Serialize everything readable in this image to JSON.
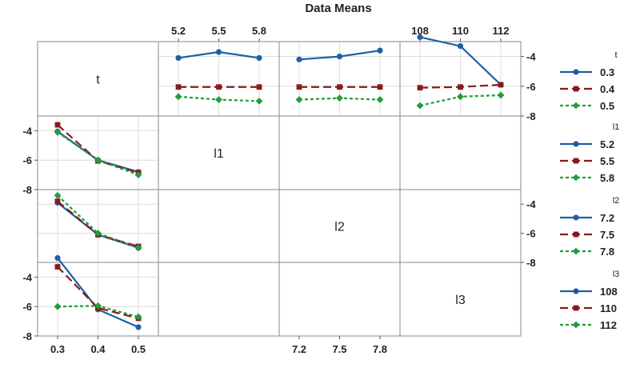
{
  "chart_data": {
    "type": "line",
    "title": "Data Means",
    "factors": [
      {
        "name": "t",
        "levels": [
          0.3,
          0.4,
          0.5
        ],
        "tick_labels": [
          "0.3",
          "0.4",
          "0.5"
        ]
      },
      {
        "name": "l1",
        "levels": [
          5.2,
          5.5,
          5.8
        ],
        "tick_labels": [
          "5.2",
          "5.5",
          "5.8"
        ]
      },
      {
        "name": "l2",
        "levels": [
          7.2,
          7.5,
          7.8
        ],
        "tick_labels": [
          "7.2",
          "7.5",
          "7.8"
        ]
      },
      {
        "name": "l3",
        "levels": [
          108,
          110,
          112
        ],
        "tick_labels": [
          "108",
          "110",
          "112"
        ]
      }
    ],
    "y_range": [
      -8,
      -3
    ],
    "y_ticks": [
      -4,
      -6,
      -8
    ],
    "y_tick_labels": [
      "-4",
      "-6",
      "-8"
    ],
    "grid": true,
    "legend_position": "right",
    "series_colors": [
      "#1f5fa8",
      "#8b1a1a",
      "#1f9e3a"
    ],
    "legends": [
      {
        "title": "t",
        "labels": [
          "0.3",
          "0.4",
          "0.5"
        ]
      },
      {
        "title": "l1",
        "labels": [
          "5.2",
          "5.5",
          "5.8"
        ]
      },
      {
        "title": "l2",
        "labels": [
          "7.2",
          "7.5",
          "7.8"
        ]
      },
      {
        "title": "l3",
        "labels": [
          "108",
          "110",
          "112"
        ]
      }
    ],
    "panels": [
      {
        "row": 0,
        "col": 1,
        "x_factor": "l1",
        "trace_factor": "t",
        "series": [
          {
            "values": [
              -4.1,
              -3.7,
              -4.1
            ]
          },
          {
            "values": [
              -6.05,
              -6.05,
              -6.05
            ]
          },
          {
            "values": [
              -6.7,
              -6.9,
              -7.0
            ]
          }
        ]
      },
      {
        "row": 0,
        "col": 2,
        "x_factor": "l2",
        "trace_factor": "t",
        "series": [
          {
            "values": [
              -4.2,
              -4.0,
              -3.6
            ]
          },
          {
            "values": [
              -6.05,
              -6.05,
              -6.05
            ]
          },
          {
            "values": [
              -6.9,
              -6.8,
              -6.9
            ]
          }
        ]
      },
      {
        "row": 0,
        "col": 3,
        "x_factor": "l3",
        "trace_factor": "t",
        "series": [
          {
            "values": [
              -2.7,
              -3.3,
              -5.9
            ]
          },
          {
            "values": [
              -6.1,
              -6.05,
              -5.9
            ]
          },
          {
            "values": [
              -7.3,
              -6.7,
              -6.6
            ]
          }
        ]
      },
      {
        "row": 1,
        "col": 0,
        "x_factor": "t",
        "trace_factor": "l1",
        "series": [
          {
            "values": [
              -4.05,
              -6.0,
              -6.8
            ]
          },
          {
            "values": [
              -3.6,
              -6.05,
              -6.85
            ]
          },
          {
            "values": [
              -4.1,
              -6.0,
              -7.0
            ]
          }
        ]
      },
      {
        "row": 2,
        "col": 0,
        "x_factor": "t",
        "trace_factor": "l2",
        "series": [
          {
            "values": [
              -3.9,
              -6.1,
              -7.0
            ]
          },
          {
            "values": [
              -3.8,
              -6.1,
              -6.9
            ]
          },
          {
            "values": [
              -3.4,
              -6.0,
              -7.0
            ]
          }
        ]
      },
      {
        "row": 3,
        "col": 0,
        "x_factor": "t",
        "trace_factor": "l3",
        "series": [
          {
            "values": [
              -2.7,
              -6.2,
              -7.4
            ]
          },
          {
            "values": [
              -3.3,
              -6.1,
              -6.8
            ]
          },
          {
            "values": [
              -6.0,
              -5.95,
              -6.7
            ]
          }
        ]
      }
    ],
    "diagonal_labels": [
      "t",
      "l1",
      "l2",
      "l3"
    ]
  }
}
